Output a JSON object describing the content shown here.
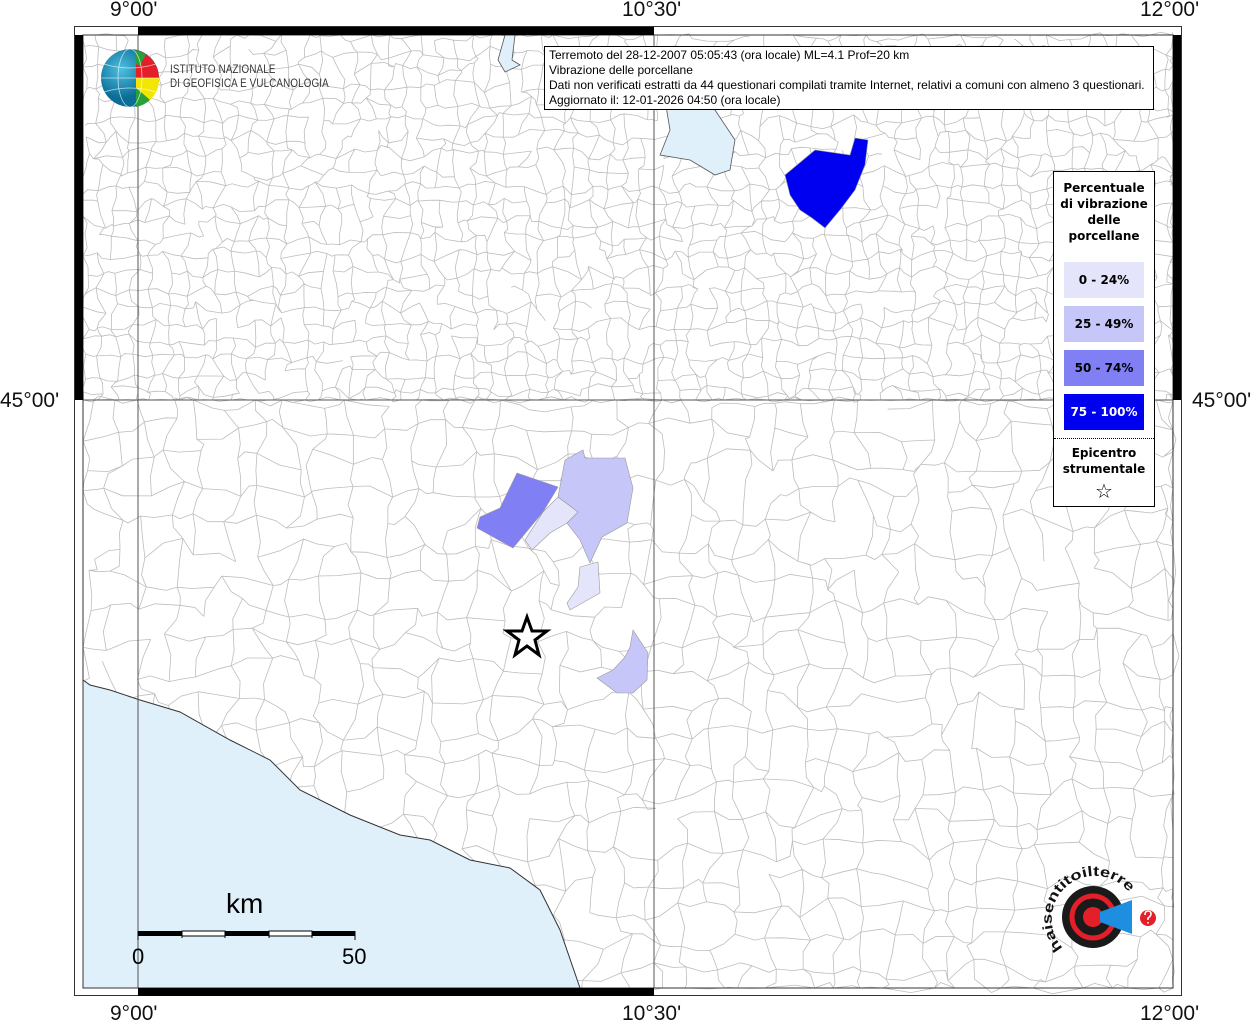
{
  "axes": {
    "top_ticks": [
      "9°00'",
      "10°30'",
      "12°00'"
    ],
    "bottom_ticks": [
      "9°00'",
      "10°30'",
      "12°00'"
    ],
    "left_ticks": [
      "45°00'"
    ],
    "right_ticks": [
      "45°00'"
    ]
  },
  "info": {
    "line1": "Terremoto del 28-12-2007 05:05:43 (ora locale) ML=4.1 Prof=20 km",
    "line2": "Vibrazione delle porcellane",
    "line3": "Dati non verificati estratti da 44 questionari compilati tramite Internet, relativi a comuni con almeno 3 questionari.",
    "line4": "Aggiornato il: 12-01-2026 04:50 (ora locale)"
  },
  "logo_ingv": {
    "line1": "ISTITUTO NAZIONALE",
    "line2": "DI GEOFISICA E VULCANOLOGIA"
  },
  "logo_haisentito": {
    "text": "www.haisentitoilterremoto.it"
  },
  "legend": {
    "title": "Percentuale di vibrazione delle porcellane",
    "classes": [
      {
        "label": "0 - 24%",
        "color": "#e4e4fb",
        "text_color": "#000000"
      },
      {
        "label": "25 - 49%",
        "color": "#c6c6f8",
        "text_color": "#000000"
      },
      {
        "label": "50 - 74%",
        "color": "#8080f4",
        "text_color": "#000000"
      },
      {
        "label": "75 - 100%",
        "color": "#0000f0",
        "text_color": "#ffffff"
      }
    ],
    "epicenter_label": "Epicentro strumentale",
    "epicenter_symbol": "☆"
  },
  "scale_bar": {
    "unit": "km",
    "min_label": "0",
    "max_label": "50"
  },
  "colors": {
    "sea": "#dff0fb",
    "boundaries": "#bdbdbd",
    "graticule": "#555555"
  }
}
